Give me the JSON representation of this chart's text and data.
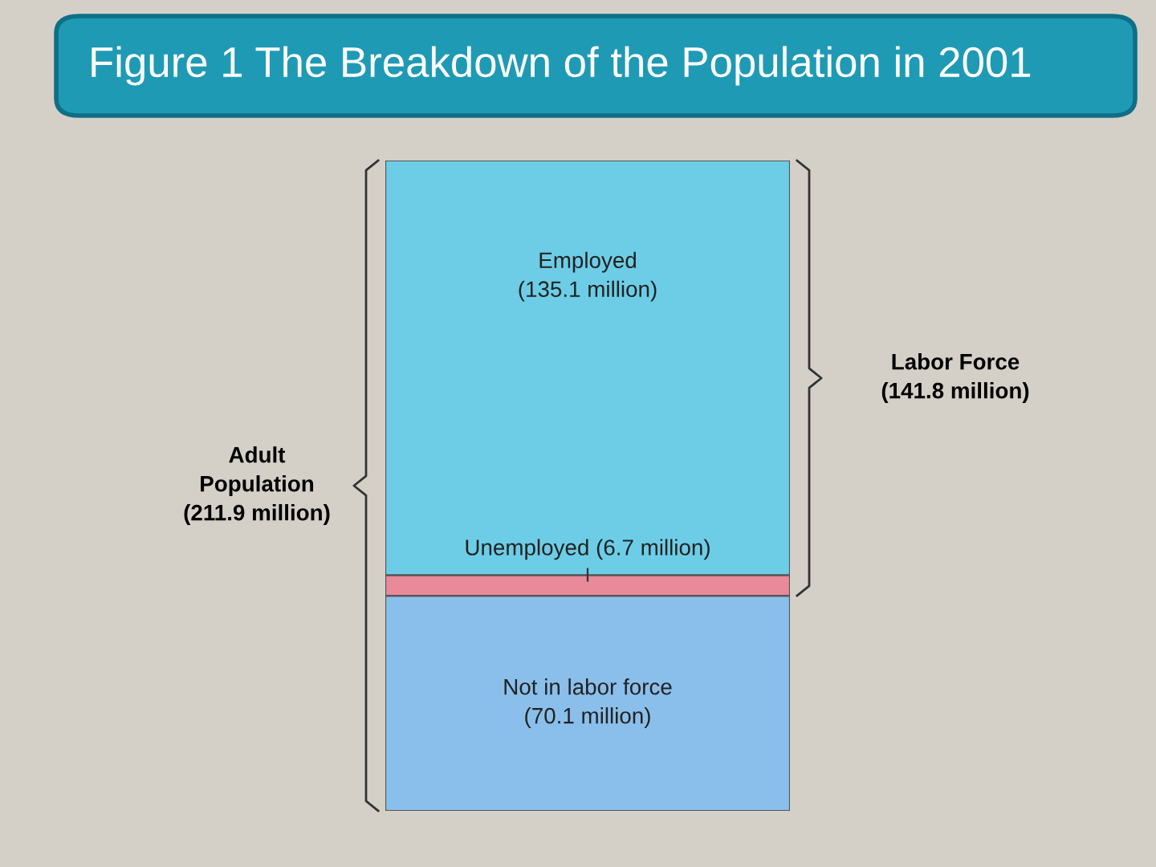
{
  "chart_data": {
    "type": "bar",
    "title": "Figure 1 The Breakdown of the Population in 2001",
    "stacked": true,
    "categories": [
      null
    ],
    "legend": false,
    "series": [
      {
        "name": "Not in labor force",
        "color": "#8bbfeb",
        "values": [
          70.1
        ],
        "value_labels": [
          "(70.1 million)"
        ]
      },
      {
        "name": "Unemployed",
        "color": "#e88a9a",
        "values": [
          6.7
        ],
        "value_labels": [
          "(6.7 million)"
        ]
      },
      {
        "name": "Employed",
        "color": "#6dcde6",
        "values": [
          135.1
        ],
        "value_labels": [
          "(135.1 million)"
        ]
      }
    ],
    "annotations": [
      "Adult\nPopulation\n(211.9 million)",
      "Labor Force\n(141.8 million)"
    ]
  }
}
